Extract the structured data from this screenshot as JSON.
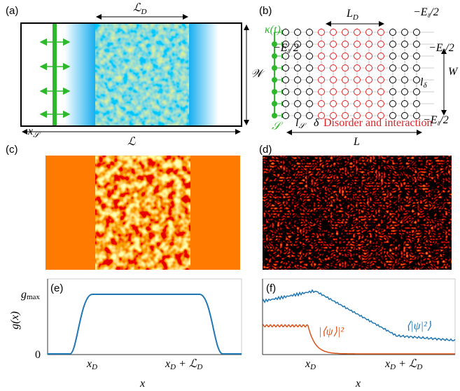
{
  "panel_a": {
    "label": "(a)",
    "disorder_length": {
      "base": "ℒ",
      "sub": "D"
    },
    "width": "𝒲",
    "source_position": {
      "base": "x",
      "sub": "𝒮"
    },
    "length": "ℒ"
  },
  "panel_b": {
    "label": "(b)",
    "disorder_length": {
      "base": "L",
      "sub": "D"
    },
    "drive": "κ(t)",
    "boundary_energy": {
      "base": "−E",
      "sub": "δ",
      "tail": "/2"
    },
    "width": "W",
    "lattice_spacing": {
      "base": "l",
      "sub": "δ"
    },
    "source_spacing": {
      "base": "l",
      "sub": "𝒮"
    },
    "delta": "δ",
    "region_note": "Disorder and interaction",
    "source": "𝒮",
    "length": "L"
  },
  "panel_c": {
    "label": "(c)"
  },
  "panel_d": {
    "label": "(d)"
  },
  "panel_e": {
    "label": "(e)",
    "y_label": "g(x)",
    "y_max_label": {
      "base": "g",
      "sub": "max"
    },
    "y_zero_label": "0",
    "x_label": "x",
    "x_tick_start": {
      "base": "x",
      "sub": "D"
    },
    "x_tick_end": {
      "base": "x",
      "sub": "D",
      "plus": " + ℒ",
      "sub2": "D"
    }
  },
  "panel_f": {
    "label": "(f)",
    "density_label": "⟨|ψ|²⟩",
    "coherent_label": "|⟨ψ⟩|²",
    "x_label": "x",
    "x_tick_start": {
      "base": "x",
      "sub": "D"
    },
    "x_tick_end": {
      "base": "x",
      "sub": "D",
      "plus": " + ℒ",
      "sub2": "D"
    }
  }
}
